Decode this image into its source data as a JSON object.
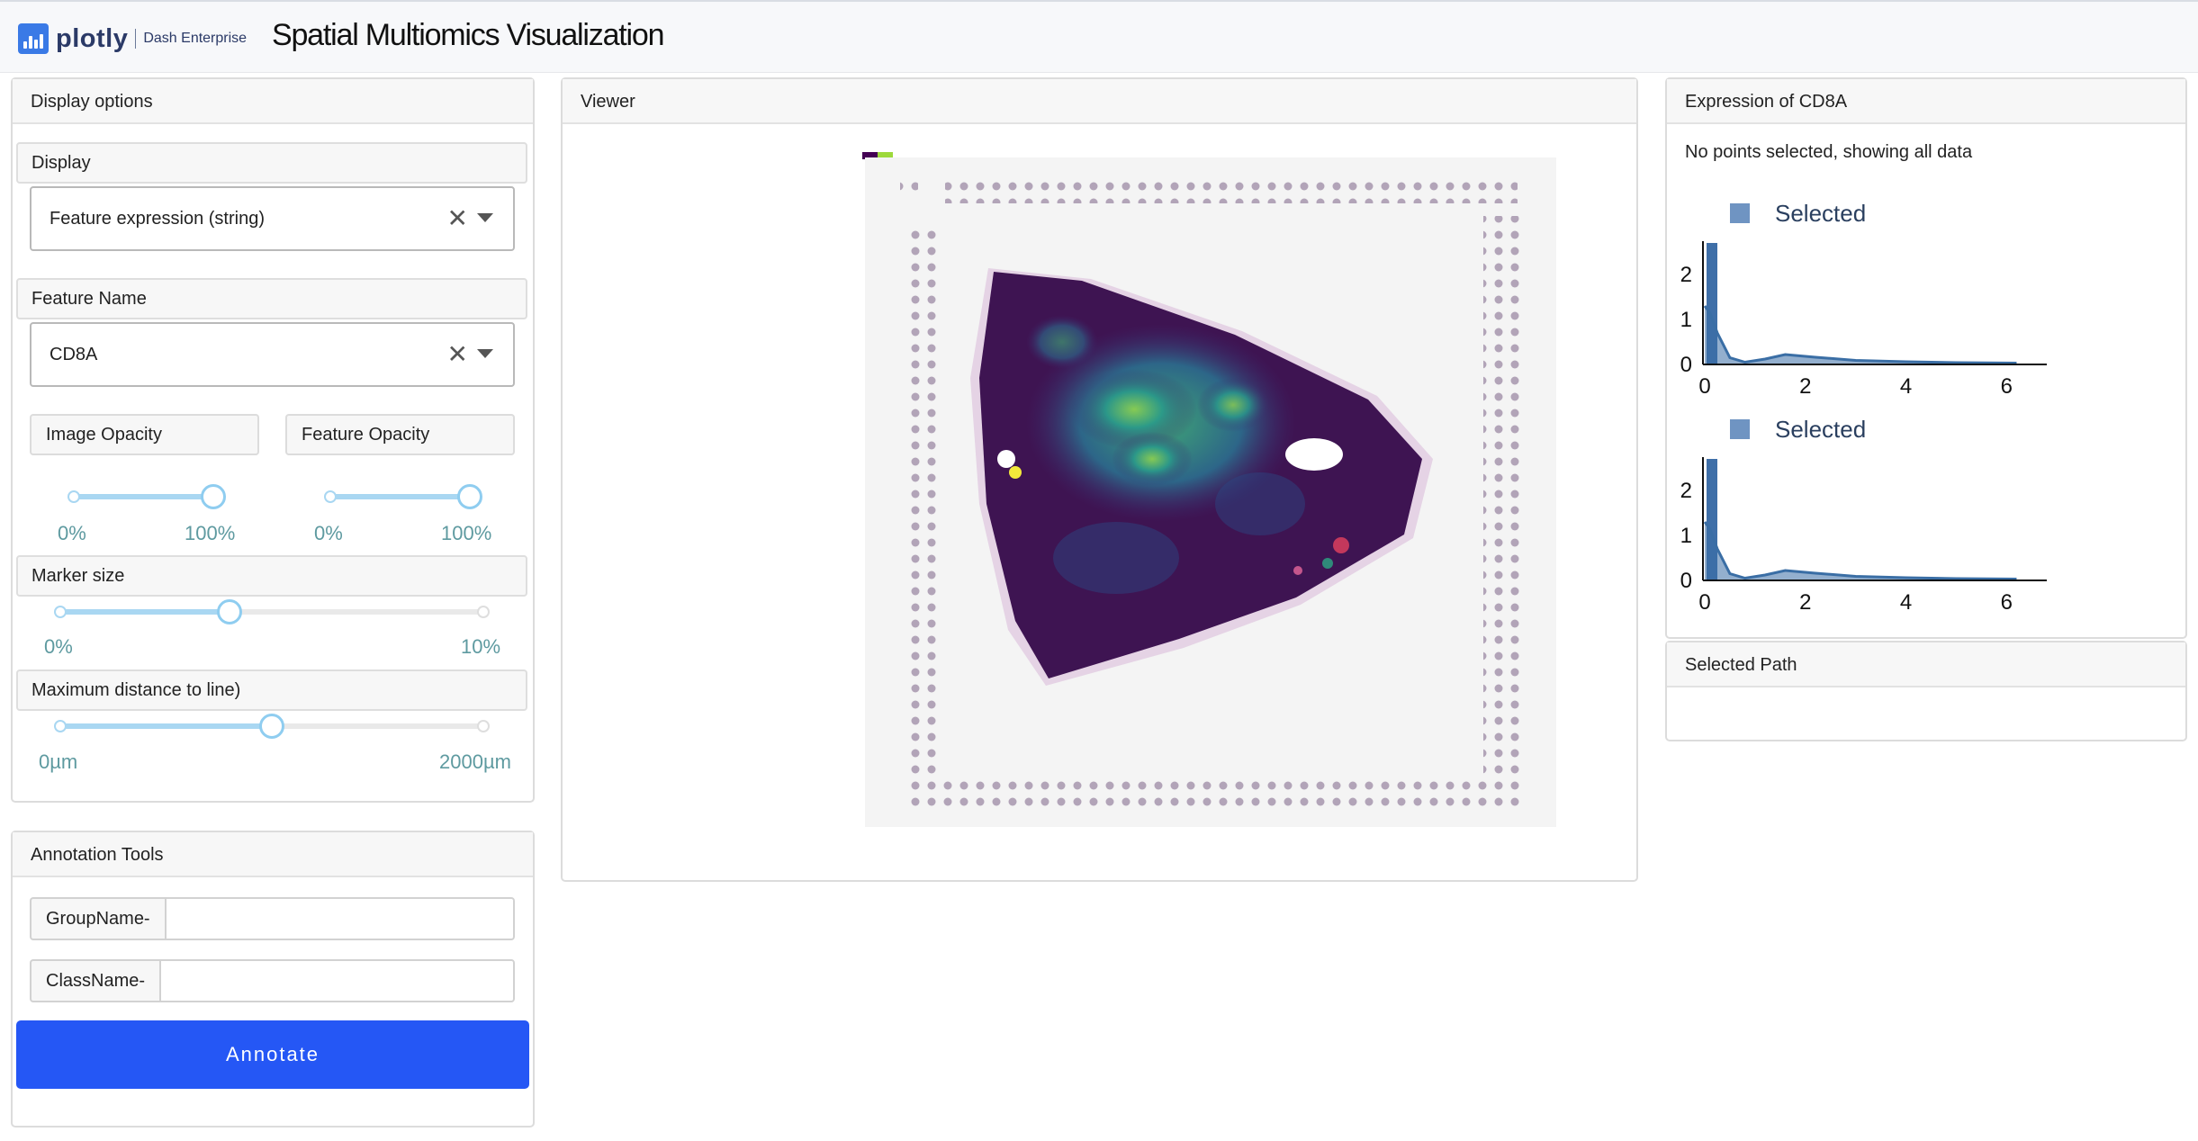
{
  "header": {
    "brand": "plotly",
    "brand_sub": "Dash Enterprise",
    "title": "Spatial Multiomics Visualization"
  },
  "display_options": {
    "title": "Display options",
    "display_label": "Display",
    "display_value": "Feature expression (string)",
    "feature_label": "Feature Name",
    "feature_value": "CD8A",
    "clear_glyph": "✕",
    "image_opacity_label": "Image Opacity",
    "feature_opacity_label": "Feature Opacity",
    "image_opacity": {
      "min": "0%",
      "max": "100%",
      "value": 100
    },
    "feature_opacity": {
      "min": "0%",
      "max": "100%",
      "value": 100
    },
    "marker_size_label": "Marker size",
    "marker_size": {
      "min": "0%",
      "max": "10%",
      "value": 4
    },
    "max_distance_label": "Maximum distance to line)",
    "max_distance": {
      "min": "0µm",
      "max": "2000µm",
      "value": 1000
    }
  },
  "annotation": {
    "title": "Annotation Tools",
    "group_addon": "GroupName-",
    "group_value": "",
    "class_addon": "ClassName-",
    "class_value": "",
    "button": "Annotate"
  },
  "viewer": {
    "title": "Viewer"
  },
  "expression": {
    "title": "Expression of CD8A",
    "status": "No points selected, showing all data",
    "legend": "Selected",
    "colors": {
      "bar": "#3f6fa8",
      "line": "#3a6ea5",
      "legend": "#6f94c2"
    }
  },
  "selected_path": {
    "title": "Selected Path"
  },
  "chart_data": [
    {
      "type": "area",
      "series": [
        {
          "name": "Selected",
          "x": [
            0,
            0.1,
            0.25,
            0.5,
            0.8,
            1.2,
            1.6,
            2.2,
            3,
            4,
            5,
            6.2
          ],
          "y": [
            1.3,
            1.15,
            0.7,
            0.15,
            0.05,
            0.12,
            0.22,
            0.16,
            0.09,
            0.06,
            0.04,
            0.03
          ]
        }
      ],
      "bar": {
        "x": 0.05,
        "height": 2.7
      },
      "xticks": [
        0,
        2,
        4,
        6
      ],
      "yticks": [
        0,
        1,
        2
      ],
      "xlim": [
        0,
        6.8
      ],
      "ylim": [
        0,
        2.9
      ]
    },
    {
      "type": "area",
      "series": [
        {
          "name": "Selected",
          "x": [
            0,
            0.1,
            0.25,
            0.5,
            0.8,
            1.2,
            1.6,
            2.2,
            3,
            4,
            5,
            6.2
          ],
          "y": [
            1.3,
            1.15,
            0.7,
            0.15,
            0.05,
            0.12,
            0.22,
            0.16,
            0.09,
            0.06,
            0.04,
            0.03
          ]
        }
      ],
      "bar": {
        "x": 0.05,
        "height": 2.7
      },
      "xticks": [
        0,
        2,
        4,
        6
      ],
      "yticks": [
        0,
        1,
        2
      ],
      "xlim": [
        0,
        6.8
      ],
      "ylim": [
        0,
        2.9
      ]
    }
  ]
}
